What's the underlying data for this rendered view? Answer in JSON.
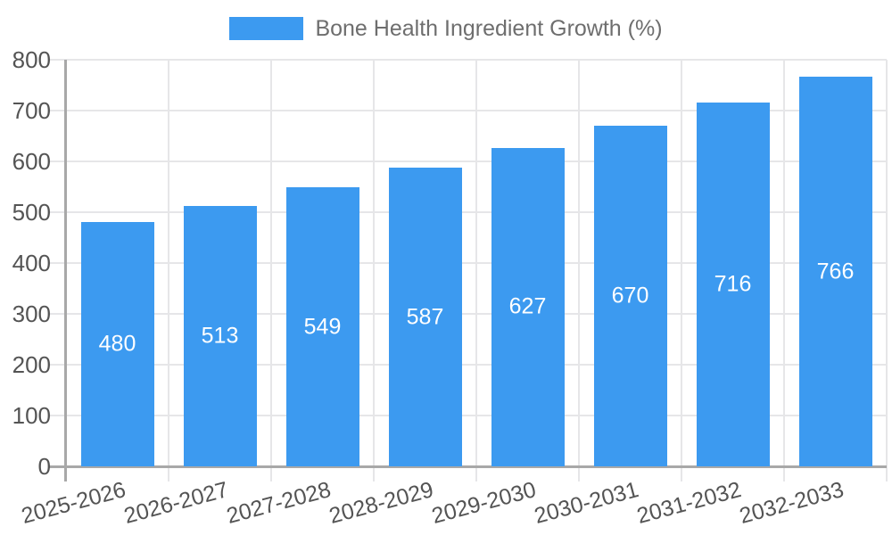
{
  "chart_data": {
    "type": "bar",
    "title": "Bone Health Ingredient Growth (%)",
    "categories": [
      "2025-2026",
      "2026-2027",
      "2027-2028",
      "2028-2029",
      "2029-2030",
      "2030-2031",
      "2031-2032",
      "2032-2033"
    ],
    "values": [
      480,
      513,
      549,
      587,
      627,
      670,
      716,
      766
    ],
    "xlabel": "",
    "ylabel": "",
    "ylim": [
      0,
      800
    ],
    "ytick_step": 100,
    "grid": true,
    "legend_position": "top-center",
    "x_label_rotation_deg": -15,
    "colors": {
      "bar": "#3c9af0",
      "bar_value_label": "#ffffff",
      "tick_label": "#545454",
      "legend_label": "#6e6e6e",
      "gridline": "#e6e6e8",
      "axis_line": "#a8a8a8"
    }
  }
}
